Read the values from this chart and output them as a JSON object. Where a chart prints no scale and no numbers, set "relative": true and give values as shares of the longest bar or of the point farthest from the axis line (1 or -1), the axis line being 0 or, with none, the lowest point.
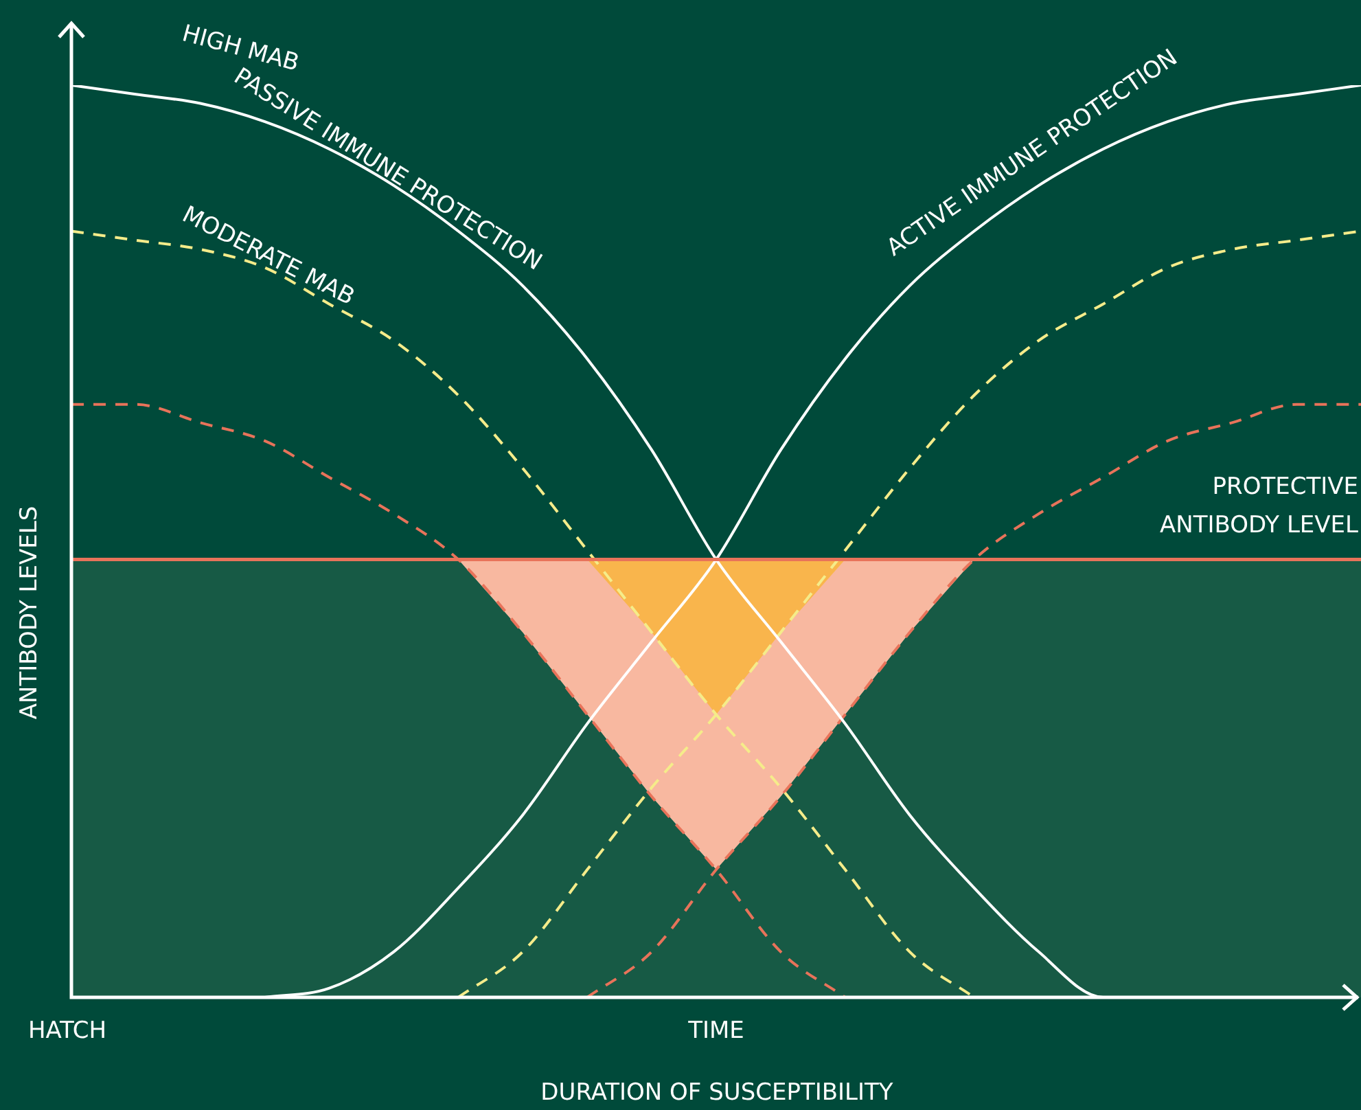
{
  "chart_data": {
    "type": "line",
    "relative": true,
    "xlabel": "TIME",
    "ylabel": "ANTIBODY LEVELS",
    "legend": false,
    "marker": "none",
    "categories": [
      null,
      null,
      null,
      null,
      null,
      null,
      null,
      null,
      null,
      null,
      null,
      null,
      null,
      null,
      null,
      null,
      null,
      null,
      null,
      null,
      null
    ],
    "series": [
      {
        "color": "#ffffff",
        "line_style": "solid",
        "values": [
          1,
          0.99,
          0.98,
          0.96,
          0.93,
          0.89,
          0.84,
          0.78,
          0.7,
          0.6,
          0.48,
          0.39,
          0.3,
          0.2,
          0.12,
          0.05,
          0,
          0,
          null,
          null,
          null
        ]
      },
      {
        "color": "#ffffff",
        "line_style": "solid",
        "values": [
          null,
          null,
          null,
          0,
          0.01,
          0.05,
          0.12,
          0.2,
          0.3,
          0.39,
          0.48,
          0.6,
          0.7,
          0.78,
          0.84,
          0.89,
          0.93,
          0.96,
          0.98,
          0.99,
          1
        ]
      },
      {
        "color": "#f5ec8a",
        "line_style": "dashed",
        "values": [
          0.84,
          0.83,
          0.82,
          0.8,
          0.76,
          0.72,
          0.66,
          0.58,
          0.49,
          0.4,
          0.31,
          0.23,
          0.14,
          0.05,
          0,
          null,
          null,
          null,
          null,
          null,
          null
        ]
      },
      {
        "color": "#f5ec8a",
        "line_style": "dashed",
        "values": [
          null,
          null,
          null,
          null,
          null,
          null,
          0,
          0.05,
          0.14,
          0.23,
          0.31,
          0.4,
          0.49,
          0.58,
          0.66,
          0.72,
          0.76,
          0.8,
          0.82,
          0.83,
          0.84
        ]
      },
      {
        "color": "#e8735a",
        "line_style": "dashed",
        "values": [
          0.65,
          0.65,
          0.63,
          0.61,
          0.57,
          0.53,
          0.48,
          0.4,
          0.31,
          0.22,
          0.14,
          0.05,
          0,
          null,
          null,
          null,
          null,
          null,
          null,
          null,
          null
        ]
      },
      {
        "color": "#e8735a",
        "line_style": "dashed",
        "values": [
          null,
          null,
          null,
          null,
          null,
          null,
          null,
          null,
          0,
          0.05,
          0.14,
          0.22,
          0.31,
          0.4,
          0.48,
          0.53,
          0.57,
          0.61,
          0.63,
          0.65,
          0.65
        ]
      },
      {
        "type": "area",
        "color": "#f8b8a0",
        "values": [
          null,
          null,
          null,
          null,
          null,
          null,
          0.48,
          0.4,
          0.31,
          0.22,
          0.14,
          0.22,
          0.31,
          0.4,
          0.48,
          null,
          null,
          null,
          null,
          null,
          null
        ]
      },
      {
        "type": "area",
        "color": "#f9b54c",
        "values": [
          null,
          null,
          null,
          null,
          null,
          null,
          null,
          null,
          0.48,
          0.4,
          0.31,
          0.4,
          0.48,
          null,
          null,
          null,
          null,
          null,
          null,
          null,
          null
        ]
      }
    ],
    "ref_lines": [
      {
        "axis": "y",
        "value": 0.48,
        "label": "PROTECTIVE ANTIBODY LEVEL",
        "color": "#e8735a"
      }
    ],
    "bands": [
      {
        "axis": "y",
        "from": 0,
        "to": 0.48,
        "color": "#175a45"
      }
    ],
    "annotations": [
      "HATCH",
      "HIGH MAB",
      "PASSIVE IMMUNE PROTECTION",
      "MODERATE MAB",
      "ACTIVE IMMUNE PROTECTION",
      "DURATION OF SUSCEPTIBILITY"
    ]
  }
}
